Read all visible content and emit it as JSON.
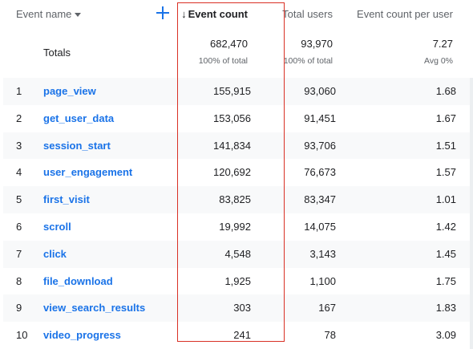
{
  "columns": {
    "event_name": "Event name",
    "event_count": "Event count",
    "sort_arrow": "↓",
    "total_users": "Total users",
    "event_count_per_user": "Event count per user"
  },
  "totals": {
    "label": "Totals",
    "event_count": "682,470",
    "event_count_sub": "100% of total",
    "total_users": "93,970",
    "total_users_sub": "100% of total",
    "per_user": "7.27",
    "per_user_sub": "Avg 0%"
  },
  "rows": [
    {
      "idx": "1",
      "name": "page_view",
      "event_count": "155,915",
      "total_users": "93,060",
      "per_user": "1.68"
    },
    {
      "idx": "2",
      "name": "get_user_data",
      "event_count": "153,056",
      "total_users": "91,451",
      "per_user": "1.67"
    },
    {
      "idx": "3",
      "name": "session_start",
      "event_count": "141,834",
      "total_users": "93,706",
      "per_user": "1.51"
    },
    {
      "idx": "4",
      "name": "user_engagement",
      "event_count": "120,692",
      "total_users": "76,673",
      "per_user": "1.57"
    },
    {
      "idx": "5",
      "name": "first_visit",
      "event_count": "83,825",
      "total_users": "83,347",
      "per_user": "1.01"
    },
    {
      "idx": "6",
      "name": "scroll",
      "event_count": "19,992",
      "total_users": "14,075",
      "per_user": "1.42"
    },
    {
      "idx": "7",
      "name": "click",
      "event_count": "4,548",
      "total_users": "3,143",
      "per_user": "1.45"
    },
    {
      "idx": "8",
      "name": "file_download",
      "event_count": "1,925",
      "total_users": "1,100",
      "per_user": "1.75"
    },
    {
      "idx": "9",
      "name": "view_search_results",
      "event_count": "303",
      "total_users": "167",
      "per_user": "1.83"
    },
    {
      "idx": "10",
      "name": "video_progress",
      "event_count": "241",
      "total_users": "78",
      "per_user": "3.09"
    }
  ],
  "colors": {
    "link": "#1a73e8",
    "highlight": "#d93025",
    "row_alt": "#f8f9fa"
  },
  "icons": {
    "add": "plus-icon",
    "dropdown": "caret-down-icon",
    "sort": "arrow-down-icon"
  }
}
